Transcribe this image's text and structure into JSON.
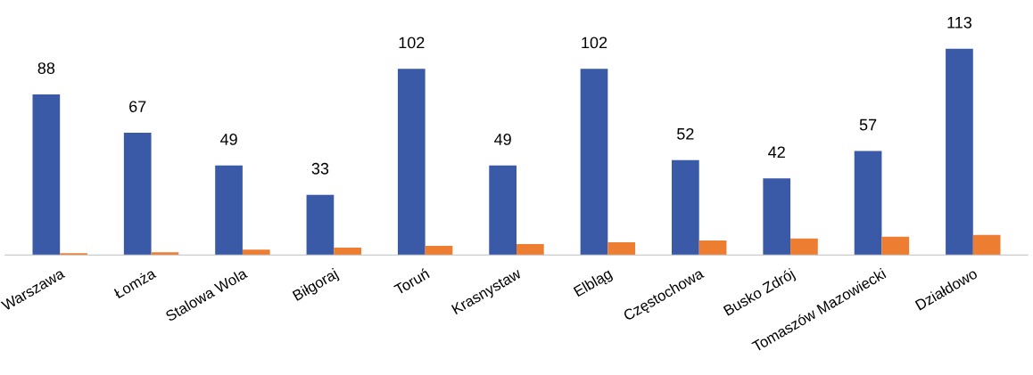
{
  "chart_data": {
    "type": "bar",
    "categories": [
      "Warszawa",
      "Łomża",
      "Stalowa Wola",
      "Biłgoraj",
      "Toruń",
      "Krasnystaw",
      "Elbląg",
      "Częstochowa",
      "Busko Zdrój",
      "Tomaszów Mazowiecki",
      "Działdowo"
    ],
    "series": [
      {
        "color": "#3a5aa8",
        "values": [
          88,
          67,
          49,
          33,
          102,
          49,
          102,
          52,
          42,
          57,
          113
        ],
        "value_labels": [
          "88",
          "67",
          "49",
          "33",
          "102",
          "49",
          "102",
          "52",
          "42",
          "57",
          "113"
        ]
      },
      {
        "color": "#ed7d31",
        "values": [
          1,
          1.5,
          3,
          4,
          5,
          6,
          7,
          8,
          9,
          10,
          11
        ]
      }
    ],
    "grid": false,
    "legend": false,
    "tick_labels": "x"
  }
}
